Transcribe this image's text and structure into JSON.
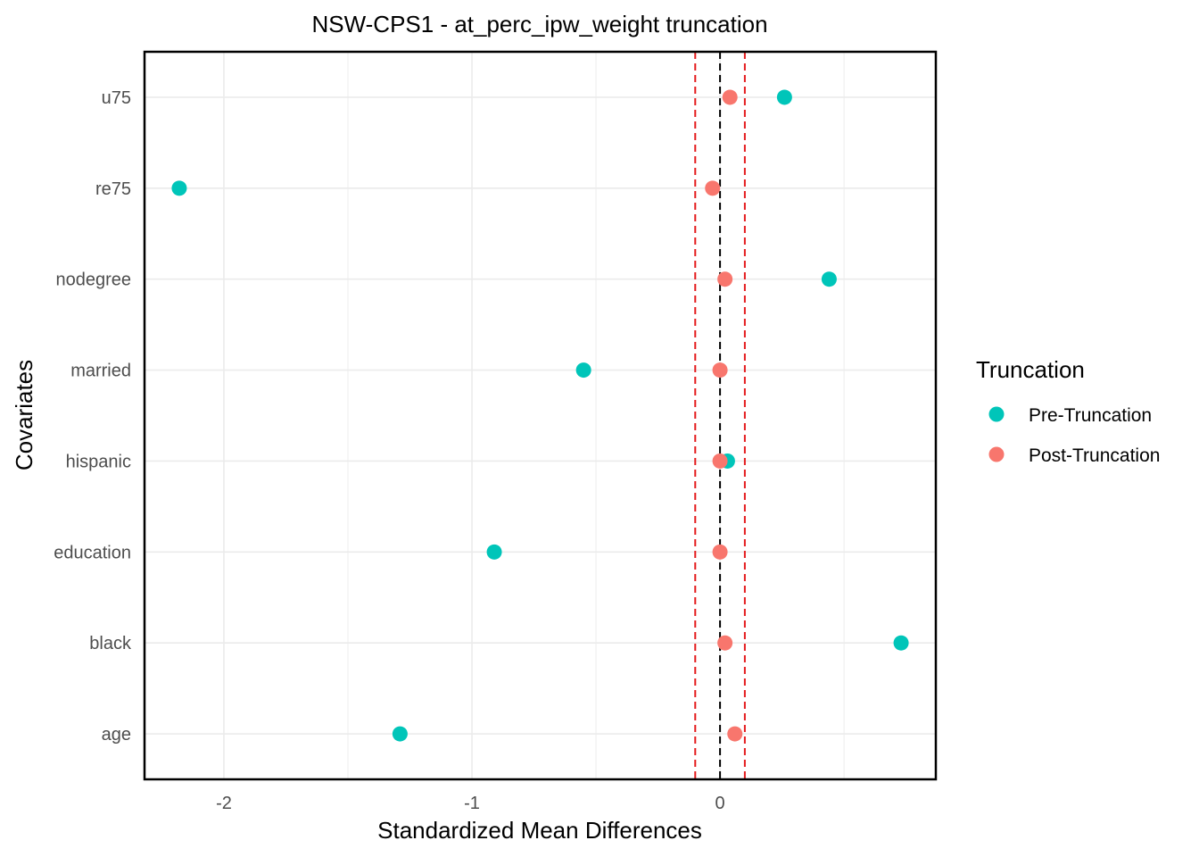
{
  "chart_data": {
    "type": "scatter",
    "title": "NSW-CPS1 - at_perc_ipw_weight truncation",
    "xlabel": "Standardized Mean Differences",
    "ylabel": "Covariates",
    "categories": [
      "age",
      "black",
      "education",
      "hispanic",
      "married",
      "nodegree",
      "re75",
      "u75"
    ],
    "x_ticks": [
      -2,
      -1,
      0
    ],
    "xlim": [
      -2.32,
      0.87
    ],
    "grid": true,
    "reference_lines": {
      "zero": 0,
      "threshold_low": -0.1,
      "threshold_high": 0.1,
      "zero_color": "#000000",
      "threshold_color": "#e41a1c"
    },
    "series": [
      {
        "name": "Pre-Truncation",
        "color": "#00c5b9",
        "values": [
          -1.29,
          0.73,
          -0.91,
          0.03,
          -0.55,
          0.44,
          -2.18,
          0.26
        ]
      },
      {
        "name": "Post-Truncation",
        "color": "#f8766d",
        "values": [
          0.06,
          0.02,
          0.0,
          0.0,
          0.0,
          0.02,
          -0.03,
          0.04
        ]
      }
    ],
    "legend": {
      "title": "Truncation",
      "position": "right"
    }
  }
}
